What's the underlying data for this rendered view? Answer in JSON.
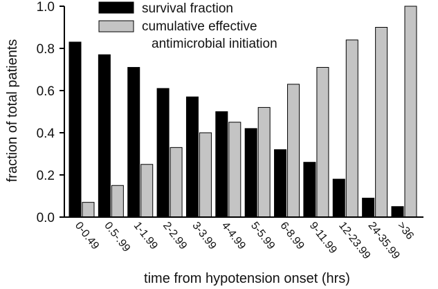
{
  "chart_data": {
    "type": "bar",
    "xlabel": "time from hypotension onset (hrs)",
    "ylabel": "fraction of total patients",
    "ylim": [
      0,
      1.0
    ],
    "yticks": [
      "0.0",
      "0.2",
      "0.4",
      "0.6",
      "0.8",
      "1.0"
    ],
    "categories": [
      "0-0.49",
      "0.5-.99",
      "1-1.99",
      "2-2.99",
      "3-3.99",
      "4-4.99",
      "5-5.99",
      "6-8.99",
      "9-11.99",
      "12-23.99",
      "24-35.99",
      ">36"
    ],
    "series": [
      {
        "name": "survival fraction",
        "color": "#000000",
        "values": [
          0.83,
          0.77,
          0.71,
          0.61,
          0.57,
          0.5,
          0.42,
          0.32,
          0.26,
          0.18,
          0.09,
          0.05
        ]
      },
      {
        "name": "cumulative effective antimicrobial initiation",
        "name_lines": [
          "cumulative effective",
          "antimicrobial initiation"
        ],
        "color": "#c4c4c4",
        "values": [
          0.07,
          0.15,
          0.25,
          0.33,
          0.4,
          0.45,
          0.52,
          0.63,
          0.71,
          0.84,
          0.9,
          1.0
        ]
      }
    ],
    "legend": "top-left",
    "grid": false
  }
}
